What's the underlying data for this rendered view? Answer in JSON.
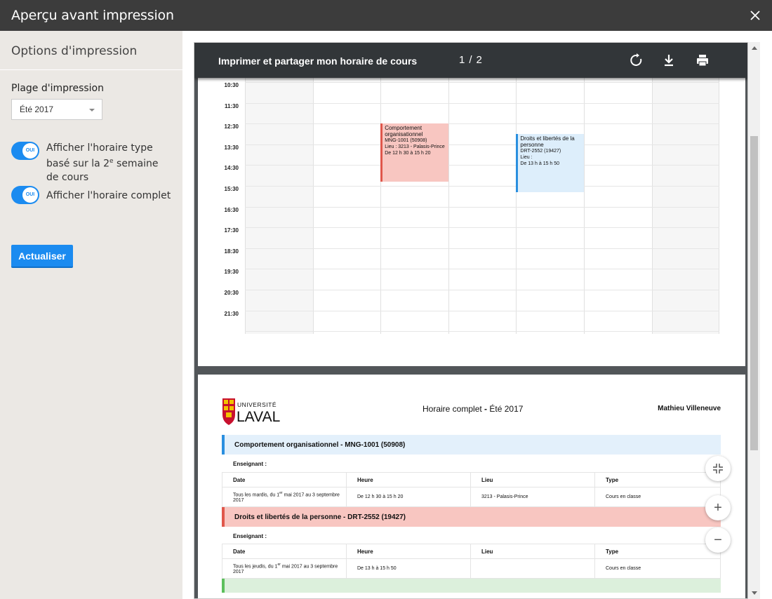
{
  "dialog": {
    "title": "Aperçu avant impression"
  },
  "sidebar": {
    "heading": "Options d'impression",
    "range_label": "Plage d'impression",
    "range_value": "Été 2017",
    "toggle1": {
      "state": "OUI",
      "text_a": "Afficher l'horaire type basé sur la 2",
      "sup": "e",
      "text_b": " semaine de cours"
    },
    "toggle2": {
      "state": "OUI",
      "text": "Afficher l'horaire complet"
    },
    "update_button": "Actualiser"
  },
  "pdf": {
    "doc_title": "Imprimer et partager mon horaire de cours",
    "current_page": "1",
    "separator": "/",
    "total_pages": "2",
    "icons": [
      "rotate-icon",
      "download-icon",
      "print-icon"
    ]
  },
  "calendar": {
    "times": [
      "10:30",
      "11:30",
      "12:30",
      "13:30",
      "14:30",
      "15:30",
      "16:30",
      "17:30",
      "18:30",
      "19:30",
      "20:30",
      "21:30"
    ],
    "events": [
      {
        "title": "Comportement organisationnel",
        "code": "MNG-1001 (50908)",
        "place": "Lieu : 3213 - Palasis-Prince",
        "time": "De 12 h 30 à 15 h 20",
        "color": "#f8c6c1",
        "accent": "#e0574b"
      },
      {
        "title": "Droits et libertés de la personne",
        "code": "DRT-2552 (19427)",
        "place": "Lieu :",
        "time": "De 13 h à 15 h 50",
        "color": "#ddeefb",
        "accent": "#2a8fdf"
      }
    ]
  },
  "page2": {
    "logo_top": "UNIVERSITÉ",
    "logo_bottom": "LAVAL",
    "title_a": "Horaire complet",
    "title_sep": " - ",
    "title_b": "Été 2017",
    "student": "Mathieu Villeneuve",
    "courses": [
      {
        "name": "Comportement organisationnel - MNG-1001 (50908)",
        "teacher": "Enseignant :",
        "headers": [
          "Date",
          "Heure",
          "Lieu",
          "Type"
        ],
        "date_a": "Tous les mardis, du 1",
        "date_sup": "er",
        "date_b": " mai 2017 au 3 septembre 2017",
        "hour": "De 12 h 30 à 15 h 20",
        "place": "3213 - Palasis-Prince",
        "type": "Cours en classe",
        "bg": "#e3f0fb",
        "accent": "#2a8fdf"
      },
      {
        "name": "Droits et libertés de la personne - DRT-2552 (19427)",
        "teacher": "Enseignant :",
        "headers": [
          "Date",
          "Heure",
          "Lieu",
          "Type"
        ],
        "date_a": "Tous les jeudis, du 1",
        "date_sup": "er",
        "date_b": " mai 2017 au 3 septembre 2017",
        "hour": "De 13 h à 15 h 50",
        "place": "",
        "type": "Cours en classe",
        "bg": "#f8c6c1",
        "accent": "#e0574b"
      }
    ],
    "third_accent": "#5cbf5c",
    "third_bg": "#dcf0dc"
  },
  "zoom_controls": {
    "fit": "⤡",
    "plus": "+",
    "minus": "−"
  }
}
